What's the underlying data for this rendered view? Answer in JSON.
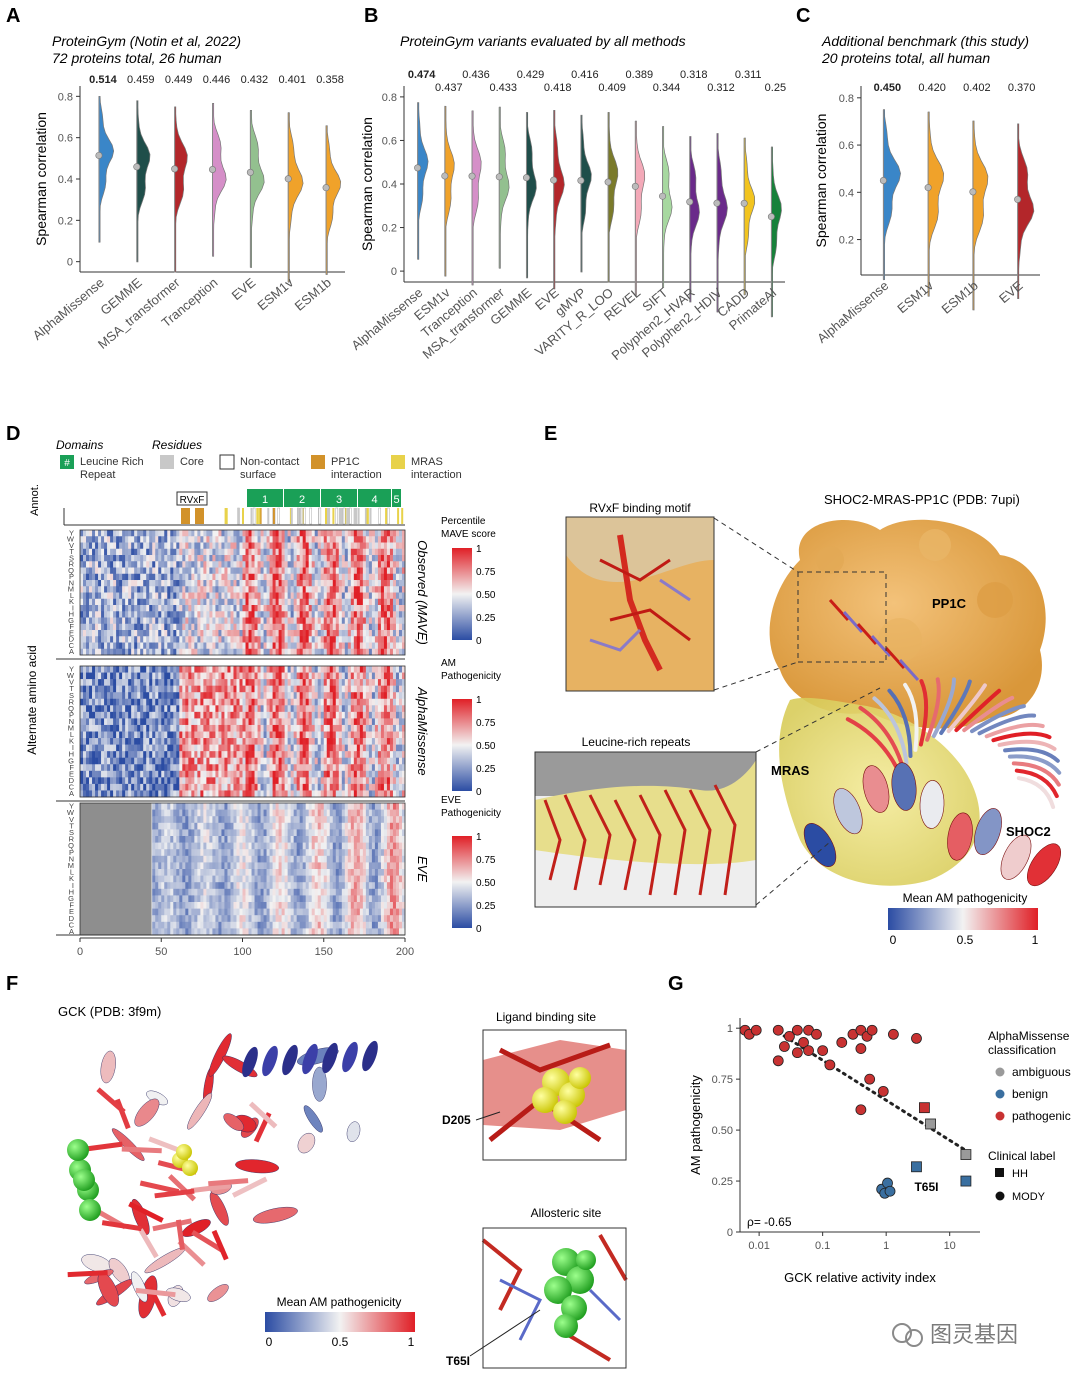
{
  "panels": {
    "a": "A",
    "b": "B",
    "c": "C",
    "d": "D",
    "e": "E",
    "f": "F",
    "g": "G"
  },
  "chart_data": [
    {
      "id": "A",
      "type": "violin",
      "title": "ProteinGym (Notin et al, 2022)",
      "subtitle": "72 proteins total, 26 human",
      "ylabel": "Spearman correlation",
      "ylim": [
        -0.05,
        0.85
      ],
      "yticks": [
        "0",
        "0.2",
        "0.4",
        "0.6",
        "0.8"
      ],
      "categories": [
        "AlphaMissense",
        "GEMME",
        "MSA_transformer",
        "Tranception",
        "EVE",
        "ESM1v",
        "ESM1b"
      ],
      "values": [
        0.514,
        0.459,
        0.449,
        0.446,
        0.432,
        0.401,
        0.358
      ],
      "value_labels": [
        "0.514",
        "0.459",
        "0.449",
        "0.446",
        "0.432",
        "0.401",
        "0.358"
      ],
      "colors": [
        "#3a86c8",
        "#1f4e4a",
        "#b3262a",
        "#d58fc8",
        "#93c08f",
        "#f0a22a",
        "#f0a22a"
      ]
    },
    {
      "id": "B",
      "type": "violin",
      "title": "ProteinGym variants evaluated by all methods",
      "ylabel": "Spearman correlation",
      "ylim": [
        -0.05,
        0.85
      ],
      "yticks": [
        "0",
        "0.2",
        "0.4",
        "0.6",
        "0.8"
      ],
      "categories": [
        "AlphaMissense",
        "ESM1v",
        "Tranception",
        "MSA_transformer",
        "GEMME",
        "EVE",
        "gMVP",
        "VARITY_R_LOO",
        "REVEL",
        "SIFT",
        "Polyphen2_HVAR",
        "Polyphen2_HDIV",
        "CADD",
        "PrimateAI"
      ],
      "values": [
        0.474,
        0.437,
        0.436,
        0.433,
        0.429,
        0.418,
        0.416,
        0.409,
        0.389,
        0.344,
        0.318,
        0.312,
        0.311,
        0.25
      ],
      "value_labels": [
        "0.474",
        "0.437",
        "0.436",
        "0.433",
        "0.429",
        "0.418",
        "0.416",
        "0.409",
        "0.389",
        "0.344",
        "0.318",
        "0.312",
        "0.311",
        "0.25"
      ],
      "colors": [
        "#3a86c8",
        "#f0a22a",
        "#d58fc8",
        "#93c08f",
        "#1f4e4a",
        "#b3262a",
        "#1f4e4a",
        "#7a7a2a",
        "#f3a9b8",
        "#a7d8a0",
        "#6a2a8a",
        "#6a2a8a",
        "#f2c41f",
        "#17813a"
      ]
    },
    {
      "id": "C",
      "type": "violin",
      "title": "Additional benchmark (this study)",
      "subtitle": "20 proteins total, all human",
      "ylabel": "Spearman correlation",
      "ylim": [
        0.05,
        0.85
      ],
      "yticks": [
        "0.2",
        "0.4",
        "0.6",
        "0.8"
      ],
      "categories": [
        "AlphaMissense",
        "ESM1v",
        "ESM1b",
        "EVE"
      ],
      "values": [
        0.45,
        0.42,
        0.402,
        0.37
      ],
      "value_labels": [
        "0.450",
        "0.420",
        "0.402",
        "0.370"
      ],
      "colors": [
        "#3a86c8",
        "#f0a22a",
        "#f0a22a",
        "#b3262a"
      ]
    },
    {
      "id": "D",
      "type": "heatmap",
      "ylabel": "Alternate amino acid",
      "annot_label": "Annot.",
      "amino_acids": [
        "Y",
        "W",
        "V",
        "T",
        "S",
        "R",
        "Q",
        "P",
        "N",
        "M",
        "L",
        "K",
        "I",
        "H",
        "G",
        "F",
        "E",
        "D",
        "C",
        "A"
      ],
      "xticks": [
        "0",
        "50",
        "100",
        "150",
        "200"
      ],
      "xlim": [
        0,
        200
      ],
      "rows": [
        "Observed (MAVE)",
        "AlphaMissense",
        "EVE"
      ],
      "colorbars": [
        {
          "title": [
            "Percentile",
            "MAVE score"
          ],
          "ticks": [
            "1",
            "0.75",
            "0.50",
            "0.25",
            "0"
          ]
        },
        {
          "title": [
            "AM",
            "Pathogenicity"
          ],
          "ticks": [
            "1",
            "0.75",
            "0.50",
            "0.25",
            "0"
          ]
        },
        {
          "title": [
            "EVE",
            "Pathogenicity"
          ],
          "ticks": [
            "1",
            "0.75",
            "0.50",
            "0.25",
            "0"
          ]
        }
      ],
      "legend": {
        "domains_title": "Domains",
        "residues_title": "Residues",
        "items": [
          {
            "label": [
              "Leucine Rich",
              "Repeat"
            ],
            "color": "#1aa057",
            "glyph": "#"
          },
          {
            "label": [
              "Core"
            ],
            "color": "#c8c8c8"
          },
          {
            "label": [
              "Non-contact",
              "surface"
            ],
            "color": "#ffffff"
          },
          {
            "label": [
              "PP1C",
              "interaction"
            ],
            "color": "#d2922a"
          },
          {
            "label": [
              "MRAS",
              "interaction"
            ],
            "color": "#e8d24a"
          }
        ]
      },
      "motif_label": "RVxF",
      "repeats": [
        "1",
        "2",
        "3",
        "4",
        "5"
      ]
    },
    {
      "id": "G",
      "type": "scatter",
      "xlabel": "GCK relative activity index",
      "ylabel": "AM pathogenicity",
      "xscale": "log",
      "xlim": [
        0.005,
        30
      ],
      "ylim": [
        0,
        1.05
      ],
      "xticks": [
        "0.01",
        "0.1",
        "1",
        "10"
      ],
      "yticks": [
        "0",
        "0.25",
        "0.50",
        "0.75",
        "1"
      ],
      "rho_label": "ρ= -0.65",
      "annotation": "T65I",
      "legend": {
        "class_title": [
          "AlphaMissense",
          "classification"
        ],
        "classes": [
          {
            "label": "ambiguous",
            "color": "#9a9a9a"
          },
          {
            "label": "benign",
            "color": "#3a6fa0"
          },
          {
            "label": "pathogenic",
            "color": "#c83232"
          }
        ],
        "clin_title": "Clinical label",
        "clin": [
          "HH",
          "MODY"
        ]
      },
      "points": [
        {
          "x": 0.006,
          "y": 0.99,
          "c": "pathogenic",
          "s": "MODY"
        },
        {
          "x": 0.007,
          "y": 0.97,
          "c": "pathogenic",
          "s": "MODY"
        },
        {
          "x": 0.009,
          "y": 0.99,
          "c": "pathogenic",
          "s": "MODY"
        },
        {
          "x": 0.02,
          "y": 0.99,
          "c": "pathogenic",
          "s": "MODY"
        },
        {
          "x": 0.03,
          "y": 0.96,
          "c": "pathogenic",
          "s": "MODY"
        },
        {
          "x": 0.04,
          "y": 0.99,
          "c": "pathogenic",
          "s": "MODY"
        },
        {
          "x": 0.05,
          "y": 0.93,
          "c": "pathogenic",
          "s": "MODY"
        },
        {
          "x": 0.06,
          "y": 0.99,
          "c": "pathogenic",
          "s": "MODY"
        },
        {
          "x": 0.08,
          "y": 0.97,
          "c": "pathogenic",
          "s": "MODY"
        },
        {
          "x": 0.025,
          "y": 0.91,
          "c": "pathogenic",
          "s": "MODY"
        },
        {
          "x": 0.04,
          "y": 0.88,
          "c": "pathogenic",
          "s": "MODY"
        },
        {
          "x": 0.02,
          "y": 0.84,
          "c": "pathogenic",
          "s": "MODY"
        },
        {
          "x": 0.06,
          "y": 0.89,
          "c": "pathogenic",
          "s": "MODY"
        },
        {
          "x": 0.1,
          "y": 0.89,
          "c": "pathogenic",
          "s": "MODY"
        },
        {
          "x": 0.13,
          "y": 0.82,
          "c": "pathogenic",
          "s": "MODY"
        },
        {
          "x": 0.2,
          "y": 0.93,
          "c": "pathogenic",
          "s": "MODY"
        },
        {
          "x": 0.3,
          "y": 0.97,
          "c": "pathogenic",
          "s": "MODY"
        },
        {
          "x": 0.4,
          "y": 0.99,
          "c": "pathogenic",
          "s": "MODY"
        },
        {
          "x": 0.5,
          "y": 0.96,
          "c": "pathogenic",
          "s": "MODY"
        },
        {
          "x": 0.6,
          "y": 0.99,
          "c": "pathogenic",
          "s": "MODY"
        },
        {
          "x": 0.4,
          "y": 0.9,
          "c": "pathogenic",
          "s": "MODY"
        },
        {
          "x": 0.55,
          "y": 0.75,
          "c": "pathogenic",
          "s": "MODY"
        },
        {
          "x": 0.9,
          "y": 0.69,
          "c": "pathogenic",
          "s": "MODY"
        },
        {
          "x": 0.4,
          "y": 0.6,
          "c": "pathogenic",
          "s": "MODY"
        },
        {
          "x": 1.3,
          "y": 0.97,
          "c": "pathogenic",
          "s": "MODY"
        },
        {
          "x": 3.0,
          "y": 0.95,
          "c": "pathogenic",
          "s": "MODY"
        },
        {
          "x": 4.0,
          "y": 0.61,
          "c": "pathogenic",
          "s": "HH"
        },
        {
          "x": 5.0,
          "y": 0.53,
          "c": "ambiguous",
          "s": "HH"
        },
        {
          "x": 18.0,
          "y": 0.38,
          "c": "ambiguous",
          "s": "HH"
        },
        {
          "x": 3.0,
          "y": 0.32,
          "c": "benign",
          "s": "HH"
        },
        {
          "x": 18.0,
          "y": 0.25,
          "c": "benign",
          "s": "HH"
        },
        {
          "x": 0.85,
          "y": 0.21,
          "c": "benign",
          "s": "MODY"
        },
        {
          "x": 0.95,
          "y": 0.19,
          "c": "benign",
          "s": "MODY"
        },
        {
          "x": 1.05,
          "y": 0.24,
          "c": "benign",
          "s": "MODY"
        },
        {
          "x": 1.15,
          "y": 0.2,
          "c": "benign",
          "s": "MODY"
        }
      ]
    }
  ],
  "panel_e": {
    "title": "SHOC2-MRAS-PP1C (PDB: 7upi)",
    "inset1": "RVxF binding motif",
    "inset2": "Leucine-rich repeats",
    "labels": [
      "PP1C",
      "MRAS",
      "SHOC2"
    ],
    "colorbar_title": "Mean AM pathogenicity",
    "colorbar_ticks": [
      "0",
      "0.5",
      "1"
    ]
  },
  "panel_f": {
    "title": "GCK (PDB: 3f9m)",
    "inset1": "Ligand binding site",
    "inset2": "Allosteric site",
    "label1": "D205",
    "label2": "T65I",
    "colorbar_title": "Mean AM pathogenicity",
    "colorbar_ticks": [
      "0",
      "0.5",
      "1"
    ]
  },
  "watermark": "图灵基因"
}
